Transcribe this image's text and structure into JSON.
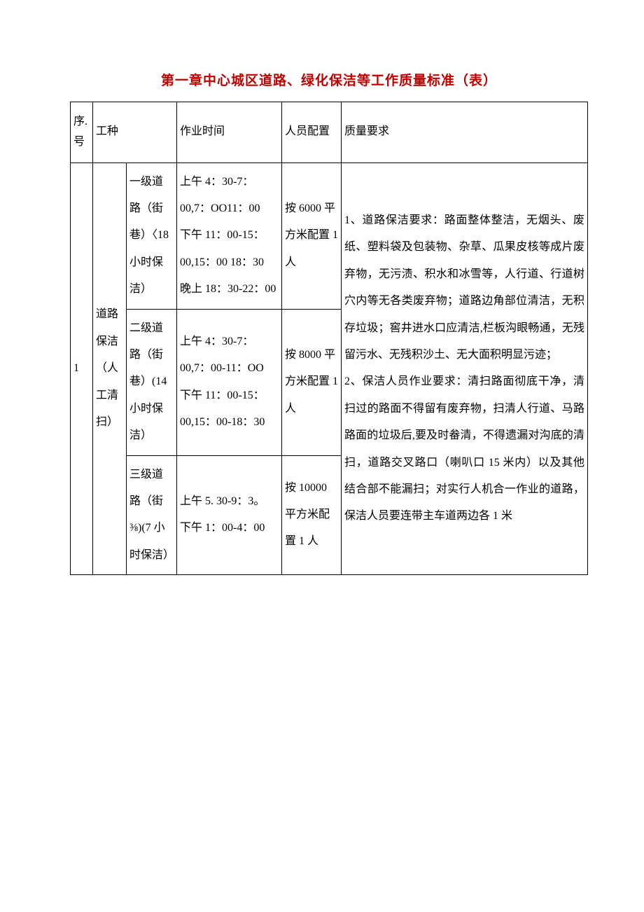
{
  "title": "第一章中心城区道路、绿化保洁等工作质量标准（表）",
  "headers": {
    "seq": "序. 号",
    "type": "工种",
    "time": "作业时间",
    "staff": "人员配置",
    "quality": "质量要求"
  },
  "row": {
    "seq": "1",
    "type_main": "道路保洁（人工清扫）",
    "level1": {
      "name": "一级道路（街巷）〈18 小时保洁）",
      "time": "上午 4：30-7：00,7：OO11：00\n下午 11：00-15：00,15：00 18：30\n晚上 18：30-22：00",
      "staff": "按 6000 平方米配置 1 人"
    },
    "level2": {
      "name": "二级道路（街巷）(14 小时保洁）",
      "time": "上午 4：30-7：00,7：00-11：OO\n下午 11：00-15：00,15：00-18：30",
      "staff": "按 8000 平方米配置 1 人"
    },
    "level3": {
      "name": "三级道路（街⅜)(7 小时保洁）",
      "time": "上午 5. 30-9：3。\n下午 1：00-4：00",
      "staff": "按 10000 平方米配置 1 人"
    },
    "quality": "1、道路保洁要求：路面整体整洁，无烟头、废纸、塑料袋及包装物、杂草、瓜果皮核等成片废弃物，无污渍、积水和冰雪等，人行道、行道树穴内等无各类废弃物；道路边角部位清洁，无积存垃圾；窖井进水口应清洁,栏板沟眼畅通，无残留污水、无残积沙土、无大面积明显污迹；\n2、保洁人员作业要求：清扫路面彻底干净，清扫过的路面不得留有废弃物，扫清人行道、马路路面的垃圾后,要及时畚清，不得遗漏对沟底的清扫，道路交叉路口（喇叭口 15 米内）以及其他结合部不能漏扫；对实行人机合一作业的道路，保洁人员要连带主车道两边各 1 米"
  },
  "style": {
    "title_color": "#c00000",
    "border_color": "#000000",
    "text_color": "#000000",
    "background": "#ffffff",
    "font_family": "SimSun",
    "base_fontsize": 16,
    "title_fontsize": 19,
    "line_height": 2.4
  }
}
